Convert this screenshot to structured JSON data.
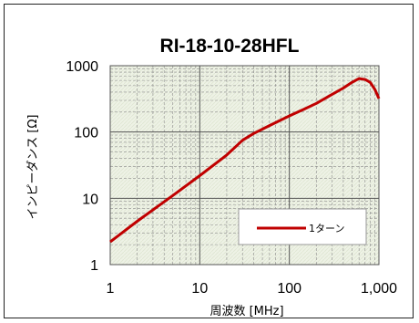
{
  "chart_data": {
    "type": "line",
    "title": "RI-18-10-28HFL",
    "xlabel": "周波数 [MHz]",
    "ylabel": "インピーダンス [Ω]",
    "x_scale": "log",
    "y_scale": "log",
    "xlim": [
      1,
      1000
    ],
    "ylim": [
      1,
      1000
    ],
    "x_ticks": [
      "1",
      "10",
      "100",
      "1,000"
    ],
    "y_ticks": [
      "1000",
      "100",
      "10",
      "1"
    ],
    "grid": true,
    "legend_position": "bottom-right",
    "colors": {
      "series": "#c00000",
      "plot_background": "#eef2e6",
      "grid": "#8a8a8a"
    },
    "series": [
      {
        "name": "1ターン",
        "x": [
          1,
          2,
          5,
          10,
          20,
          30,
          40,
          60,
          100,
          150,
          200,
          300,
          400,
          500,
          600,
          700,
          800,
          900,
          1000
        ],
        "y": [
          2.2,
          4.5,
          11,
          22,
          45,
          75,
          95,
          125,
          175,
          225,
          270,
          370,
          460,
          560,
          640,
          620,
          560,
          440,
          320
        ]
      }
    ]
  }
}
